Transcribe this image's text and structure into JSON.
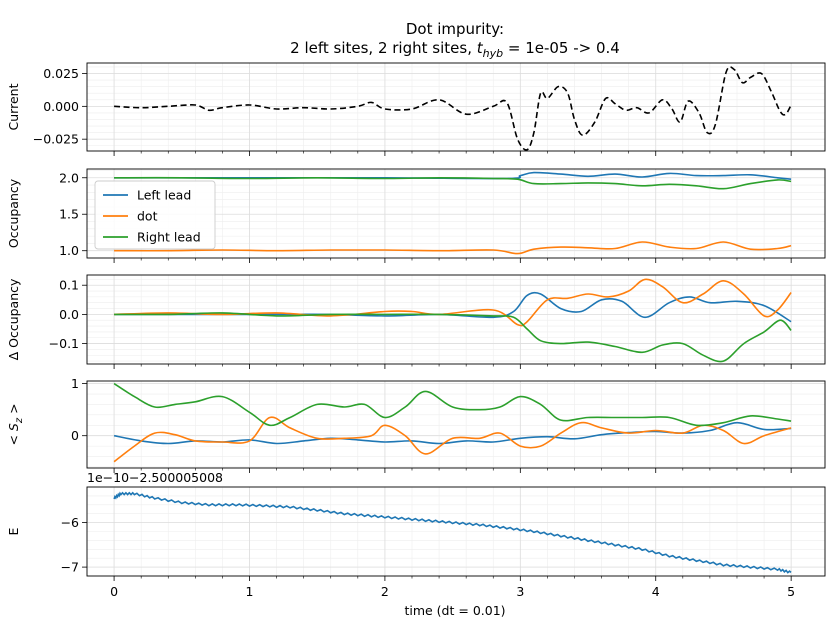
{
  "title_line1": "Dot impurity:",
  "title_line2": "2 left sites, 2 right sites, t_hyb = 1e-05 -> 0.4",
  "title_parts": {
    "prefix": "2 left sites, 2 right sites, ",
    "t": "t",
    "sub": "hyb",
    "suffix": " = 1e-05 -> 0.4"
  },
  "xlabel": "time (dt = 0.01)",
  "colors": {
    "blue": "#1f77b4",
    "orange": "#ff7f0e",
    "green": "#2ca02c",
    "black": "#000000",
    "grid": "#dddddd"
  },
  "chart_data": [
    {
      "type": "line",
      "ylabel": "Current",
      "xlim": [
        -0.2,
        5.25
      ],
      "ylim": [
        -0.034,
        0.033
      ],
      "xticks": [
        0,
        1,
        2,
        3,
        4,
        5
      ],
      "yticks": [
        0.025,
        0.0,
        -0.025
      ],
      "ytick_labels": [
        "0.025",
        "0.000",
        "−0.025"
      ],
      "series": [
        {
          "color": "#000000",
          "dashed": true,
          "x": [
            0,
            0.2,
            0.4,
            0.6,
            0.7,
            0.8,
            1.0,
            1.2,
            1.4,
            1.6,
            1.8,
            1.9,
            2.0,
            2.2,
            2.4,
            2.6,
            2.8,
            2.9,
            2.98,
            3.05,
            3.1,
            3.15,
            3.2,
            3.28,
            3.35,
            3.4,
            3.46,
            3.55,
            3.63,
            3.7,
            3.78,
            3.86,
            3.95,
            4.05,
            4.12,
            4.18,
            4.24,
            4.32,
            4.38,
            4.44,
            4.52,
            4.58,
            4.64,
            4.7,
            4.78,
            4.85,
            4.92,
            4.96,
            5.0
          ],
          "y": [
            0,
            -0.001,
            0,
            0.001,
            -0.003,
            -0.001,
            0.001,
            -0.002,
            -0.001,
            -0.002,
            0.0,
            0.003,
            -0.002,
            -0.002,
            0.005,
            -0.006,
            0.0,
            0.003,
            -0.025,
            -0.033,
            -0.02,
            0.01,
            0.006,
            0.015,
            0.01,
            -0.01,
            -0.022,
            -0.012,
            0.006,
            0.002,
            -0.003,
            -0.001,
            -0.005,
            0.005,
            -0.002,
            -0.012,
            0.004,
            -0.005,
            -0.02,
            -0.014,
            0.026,
            0.028,
            0.018,
            0.022,
            0.025,
            0.012,
            -0.004,
            -0.006,
            0.001
          ]
        }
      ]
    },
    {
      "type": "line",
      "ylabel": "Occupancy",
      "xlim": [
        -0.2,
        5.25
      ],
      "ylim": [
        0.9,
        2.12
      ],
      "xticks": [
        0,
        1,
        2,
        3,
        4,
        5
      ],
      "yticks": [
        2.0,
        1.5,
        1.0
      ],
      "ytick_labels": [
        "2.0",
        "1.5",
        "1.0"
      ],
      "legend": {
        "position": "upper-left",
        "entries": [
          "Left lead",
          "dot",
          "Right lead"
        ]
      },
      "series": [
        {
          "name": "Left lead",
          "color": "#1f77b4",
          "x": [
            0,
            1.0,
            2.0,
            2.9,
            3.0,
            3.1,
            3.3,
            3.5,
            3.7,
            3.9,
            4.1,
            4.3,
            4.5,
            4.7,
            4.9,
            5.0
          ],
          "y": [
            2.0,
            2.0,
            2.0,
            1.99,
            2.03,
            2.07,
            2.05,
            2.02,
            2.05,
            2.01,
            2.06,
            2.03,
            2.03,
            2.04,
            2.0,
            1.98
          ]
        },
        {
          "name": "dot",
          "color": "#ff7f0e",
          "x": [
            0,
            0.4,
            0.8,
            1.2,
            1.6,
            2.0,
            2.4,
            2.8,
            2.98,
            3.1,
            3.3,
            3.5,
            3.7,
            3.9,
            4.1,
            4.3,
            4.5,
            4.7,
            4.9,
            5.0
          ],
          "y": [
            1.0,
            1.0,
            1.01,
            1.0,
            1.01,
            1.01,
            1.0,
            1.01,
            0.96,
            1.02,
            1.05,
            1.04,
            1.03,
            1.12,
            1.05,
            1.03,
            1.12,
            1.02,
            1.03,
            1.07
          ]
        },
        {
          "name": "Right lead",
          "color": "#2ca02c",
          "x": [
            0,
            0.5,
            1.0,
            1.5,
            2.0,
            2.4,
            2.8,
            2.98,
            3.1,
            3.3,
            3.5,
            3.7,
            3.9,
            4.1,
            4.3,
            4.5,
            4.7,
            4.9,
            5.0
          ],
          "y": [
            2.0,
            2.0,
            1.99,
            2.0,
            1.99,
            2.0,
            1.99,
            1.98,
            1.92,
            1.92,
            1.93,
            1.92,
            1.89,
            1.91,
            1.89,
            1.85,
            1.92,
            1.97,
            1.95
          ]
        }
      ]
    },
    {
      "type": "line",
      "ylabel": "Δ Occupancy",
      "xlim": [
        -0.2,
        5.25
      ],
      "ylim": [
        -0.17,
        0.135
      ],
      "xticks": [
        0,
        1,
        2,
        3,
        4,
        5
      ],
      "yticks": [
        0.1,
        0.0,
        -0.1
      ],
      "ytick_labels": [
        "0.1",
        "0.0",
        "−0.1"
      ],
      "series": [
        {
          "name": "Left lead",
          "color": "#1f77b4",
          "x": [
            0,
            0.4,
            0.8,
            1.2,
            1.6,
            2.0,
            2.4,
            2.8,
            2.95,
            3.05,
            3.15,
            3.3,
            3.45,
            3.6,
            3.75,
            3.92,
            4.1,
            4.25,
            4.4,
            4.6,
            4.8,
            5.0
          ],
          "y": [
            0,
            0.0,
            0.0,
            0.0,
            0.0,
            -0.005,
            0.0,
            -0.01,
            0.01,
            0.065,
            0.07,
            0.02,
            0.01,
            0.05,
            0.045,
            -0.01,
            0.04,
            0.06,
            0.04,
            0.045,
            0.03,
            -0.025
          ]
        },
        {
          "name": "dot",
          "color": "#ff7f0e",
          "x": [
            0,
            0.4,
            0.8,
            1.2,
            1.6,
            2.0,
            2.2,
            2.4,
            2.8,
            2.98,
            3.05,
            3.2,
            3.35,
            3.5,
            3.65,
            3.8,
            3.92,
            4.05,
            4.2,
            4.35,
            4.5,
            4.65,
            4.8,
            4.9,
            5.0
          ],
          "y": [
            0,
            0.005,
            0.0,
            0.005,
            -0.005,
            0.01,
            0.01,
            0.0,
            0.015,
            -0.035,
            -0.025,
            0.05,
            0.055,
            0.07,
            0.06,
            0.08,
            0.12,
            0.095,
            0.04,
            0.07,
            0.115,
            0.07,
            -0.005,
            0.015,
            0.075
          ]
        },
        {
          "name": "Right lead",
          "color": "#2ca02c",
          "x": [
            0,
            0.4,
            0.8,
            1.2,
            1.6,
            2.0,
            2.4,
            2.8,
            2.95,
            3.05,
            3.15,
            3.3,
            3.5,
            3.7,
            3.9,
            4.05,
            4.2,
            4.35,
            4.5,
            4.65,
            4.8,
            4.92,
            5.0
          ],
          "y": [
            0,
            0.0,
            0.005,
            -0.005,
            0.0,
            0.0,
            0.0,
            -0.005,
            -0.01,
            -0.05,
            -0.09,
            -0.1,
            -0.095,
            -0.11,
            -0.13,
            -0.105,
            -0.1,
            -0.14,
            -0.16,
            -0.1,
            -0.06,
            -0.02,
            -0.055
          ]
        }
      ]
    },
    {
      "type": "line",
      "ylabel": "< S_z >",
      "ylabel_parts": {
        "prefix": "< ",
        "s": "S",
        "sub": "z",
        "suffix": " >"
      },
      "xlim": [
        -0.2,
        5.25
      ],
      "ylim": [
        -0.62,
        1.05
      ],
      "xticks": [
        0,
        1,
        2,
        3,
        4,
        5
      ],
      "yticks": [
        1,
        0
      ],
      "ytick_labels": [
        "1",
        "0"
      ],
      "series": [
        {
          "name": "Left lead",
          "color": "#1f77b4",
          "x": [
            0,
            0.2,
            0.4,
            0.6,
            0.8,
            1.0,
            1.2,
            1.4,
            1.6,
            1.8,
            2.0,
            2.2,
            2.4,
            2.6,
            2.8,
            3.0,
            3.2,
            3.4,
            3.6,
            3.8,
            4.0,
            4.2,
            4.4,
            4.6,
            4.8,
            5.0
          ],
          "y": [
            0,
            -0.1,
            -0.15,
            -0.1,
            -0.12,
            -0.08,
            -0.15,
            -0.1,
            -0.05,
            -0.08,
            -0.12,
            -0.1,
            -0.15,
            -0.1,
            -0.12,
            -0.05,
            -0.02,
            -0.06,
            0.02,
            0.06,
            0.08,
            0.05,
            0.1,
            0.25,
            0.12,
            0.14
          ]
        },
        {
          "name": "dot",
          "color": "#ff7f0e",
          "x": [
            0,
            0.15,
            0.3,
            0.45,
            0.6,
            0.8,
            1.0,
            1.15,
            1.3,
            1.5,
            1.7,
            1.9,
            2.0,
            2.15,
            2.3,
            2.5,
            2.7,
            2.85,
            3.0,
            3.15,
            3.3,
            3.45,
            3.6,
            3.8,
            4.0,
            4.2,
            4.35,
            4.5,
            4.65,
            4.8,
            5.0
          ],
          "y": [
            -0.5,
            -0.2,
            0.05,
            0.02,
            -0.1,
            -0.12,
            -0.1,
            0.35,
            0.15,
            -0.05,
            -0.05,
            0.0,
            0.2,
            0.0,
            -0.35,
            -0.05,
            -0.05,
            0.05,
            -0.2,
            -0.2,
            0.05,
            0.25,
            0.15,
            0.05,
            0.1,
            0.05,
            0.2,
            0.1,
            -0.15,
            0.0,
            0.15
          ]
        },
        {
          "name": "Right lead",
          "color": "#2ca02c",
          "x": [
            0,
            0.15,
            0.3,
            0.45,
            0.6,
            0.8,
            1.0,
            1.15,
            1.3,
            1.5,
            1.7,
            1.85,
            2.0,
            2.15,
            2.3,
            2.5,
            2.7,
            2.85,
            3.0,
            3.15,
            3.3,
            3.5,
            3.7,
            3.9,
            4.1,
            4.3,
            4.5,
            4.7,
            4.9,
            5.0
          ],
          "y": [
            1.0,
            0.75,
            0.55,
            0.6,
            0.65,
            0.75,
            0.45,
            0.2,
            0.35,
            0.6,
            0.55,
            0.6,
            0.35,
            0.55,
            0.85,
            0.55,
            0.5,
            0.55,
            0.75,
            0.6,
            0.3,
            0.35,
            0.35,
            0.35,
            0.35,
            0.2,
            0.25,
            0.38,
            0.32,
            0.28
          ]
        }
      ]
    },
    {
      "type": "line",
      "ylabel": "E",
      "offset_label": "1e−10−2.500005008",
      "xlim": [
        -0.2,
        5.25
      ],
      "ylim": [
        -7.2,
        -5.2
      ],
      "xticks": [
        0,
        1,
        2,
        3,
        4,
        5
      ],
      "xtick_labels": [
        "0",
        "1",
        "2",
        "3",
        "4",
        "5"
      ],
      "yticks": [
        -6,
        -7
      ],
      "ytick_labels": [
        "−6",
        "−7"
      ],
      "series": [
        {
          "color": "#1f77b4",
          "noisy": true,
          "x": [
            0,
            0.05,
            0.15,
            0.3,
            0.5,
            0.7,
            0.9,
            1.1,
            1.3,
            1.5,
            1.7,
            1.9,
            2.1,
            2.3,
            2.5,
            2.7,
            2.9,
            3.1,
            3.3,
            3.5,
            3.7,
            3.9,
            4.1,
            4.3,
            4.5,
            4.7,
            4.9,
            5.0
          ],
          "y": [
            -5.45,
            -5.35,
            -5.35,
            -5.45,
            -5.55,
            -5.6,
            -5.6,
            -5.62,
            -5.65,
            -5.72,
            -5.8,
            -5.85,
            -5.9,
            -5.95,
            -6.0,
            -6.05,
            -6.12,
            -6.2,
            -6.3,
            -6.4,
            -6.5,
            -6.6,
            -6.75,
            -6.85,
            -6.95,
            -7.0,
            -7.05,
            -7.12
          ]
        }
      ]
    }
  ]
}
